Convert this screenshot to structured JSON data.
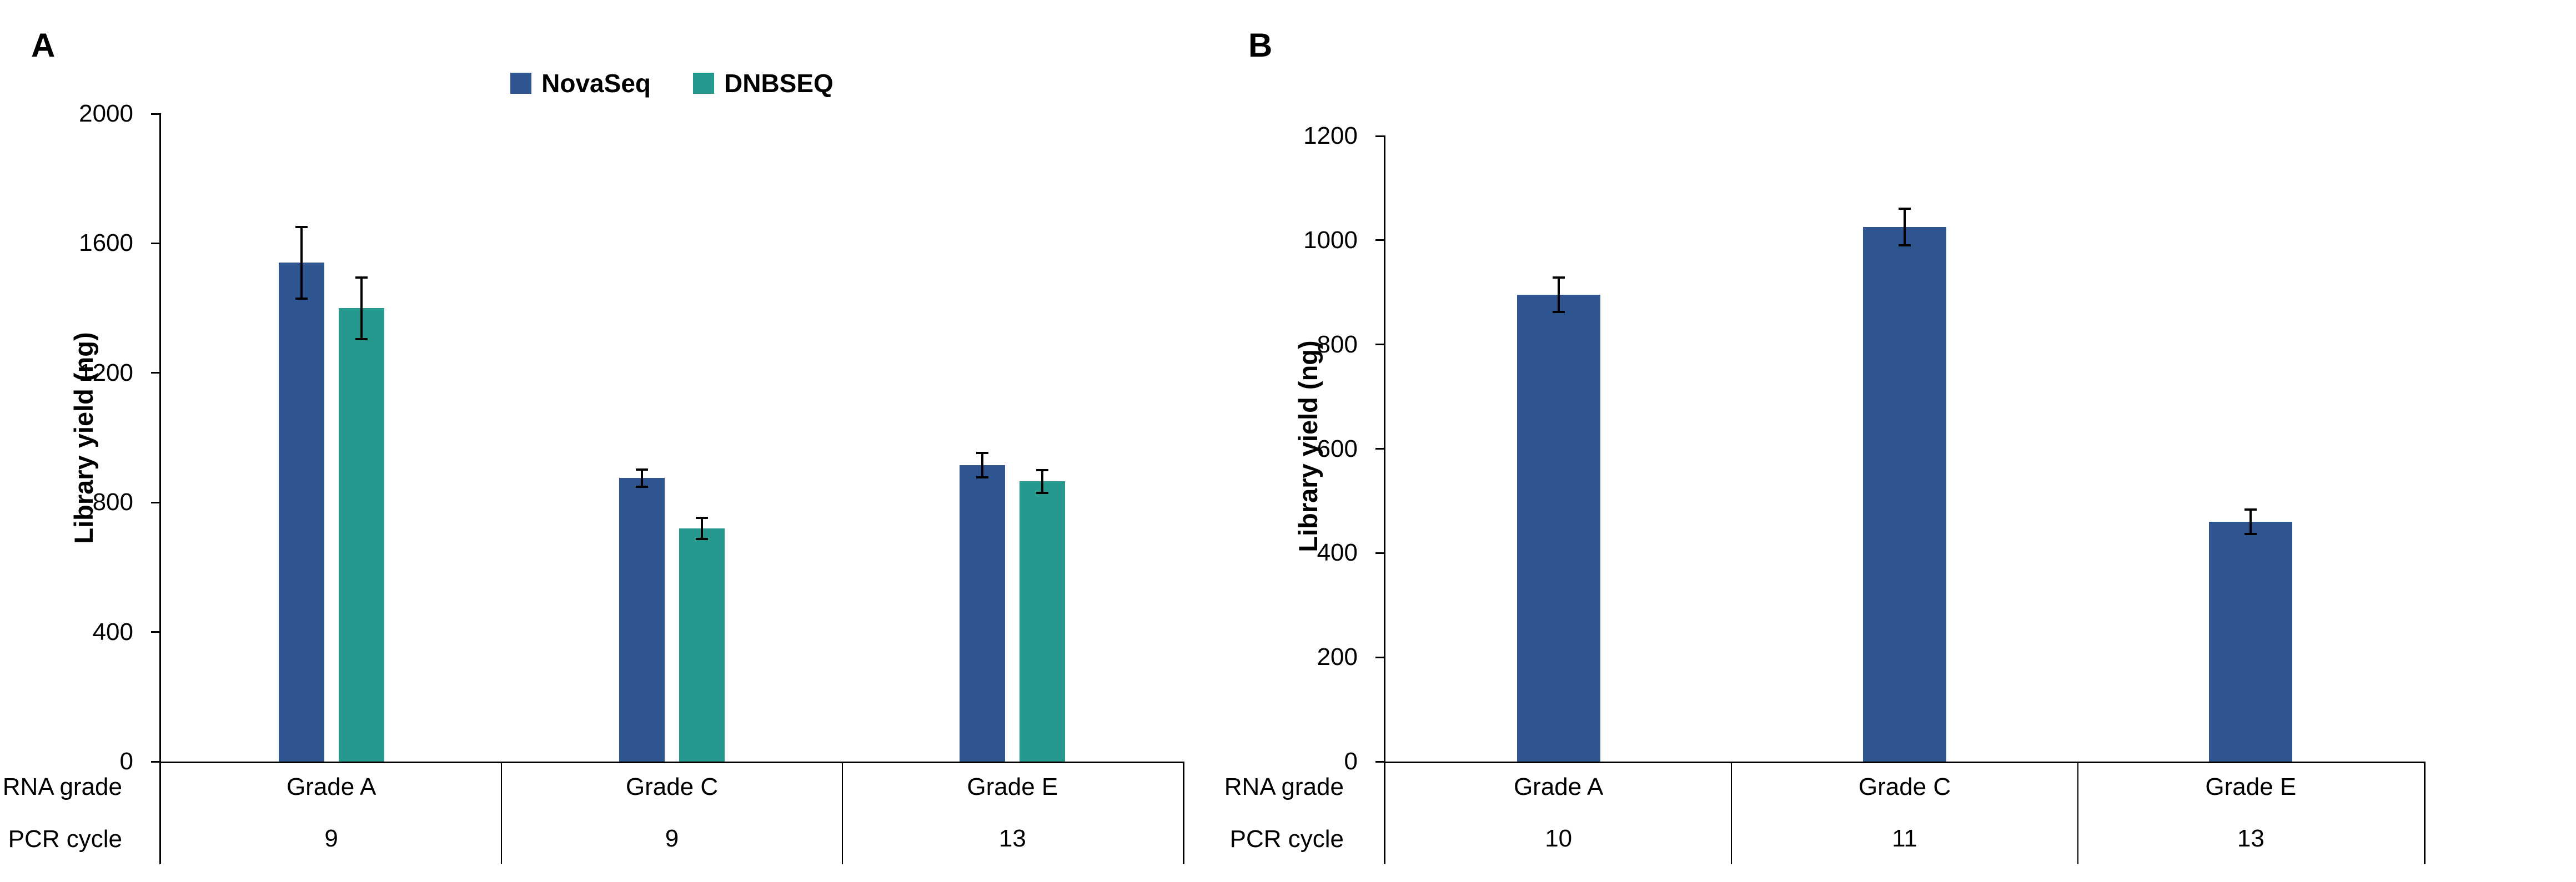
{
  "figure": {
    "panels": [
      "A",
      "B"
    ],
    "accent_colors": {
      "novaseq_blue": "#2F5591",
      "dnbseq_teal": "#26998F"
    }
  },
  "chart_data": [
    {
      "type": "bar",
      "panel": "A",
      "title": "",
      "xlabel": "",
      "ylabel": "Library yield (ng)",
      "ylim": [
        0,
        2000
      ],
      "ytick_step": 400,
      "yticks": [
        0,
        400,
        800,
        1200,
        1600,
        2000
      ],
      "grid": false,
      "legend_position": "top-center",
      "categories": [
        "Grade A",
        "Grade C",
        "Grade E"
      ],
      "row_labels": [
        "RNA grade",
        "PCR cycle"
      ],
      "pcr_cycles": [
        "9",
        "9",
        "13"
      ],
      "error_bars": true,
      "series": [
        {
          "name": "NovaSeq",
          "color": "#2F5591",
          "values": [
            1540,
            875,
            915
          ],
          "errors": [
            110,
            27,
            38
          ]
        },
        {
          "name": "DNBSEQ",
          "color": "#26998F",
          "values": [
            1400,
            720,
            865
          ],
          "errors": [
            95,
            33,
            35
          ]
        }
      ]
    },
    {
      "type": "bar",
      "panel": "B",
      "title": "",
      "xlabel": "",
      "ylabel": "Library yield (ng)",
      "ylim": [
        0,
        1200
      ],
      "ytick_step": 200,
      "yticks": [
        0,
        200,
        400,
        600,
        800,
        1000,
        1200
      ],
      "grid": false,
      "legend_position": "none",
      "categories": [
        "Grade A",
        "Grade C",
        "Grade E"
      ],
      "row_labels": [
        "RNA grade",
        "PCR cycle"
      ],
      "pcr_cycles": [
        "10",
        "11",
        "13"
      ],
      "error_bars": true,
      "series": [
        {
          "color": "#2F5591",
          "values": [
            895,
            1025,
            460
          ],
          "errors": [
            33,
            35,
            23
          ]
        }
      ]
    }
  ]
}
